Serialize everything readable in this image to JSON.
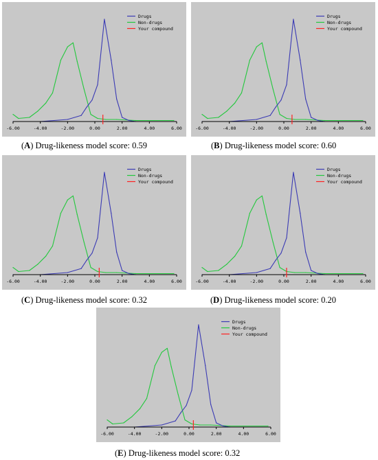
{
  "colors": {
    "background": "#c8c8c8",
    "drugs": "#3a3ab4",
    "non_drugs": "#22c83c",
    "your_compound": "#ff2020",
    "axis": "#000000"
  },
  "chart_data": [
    {
      "type": "line",
      "panel_letter": "A",
      "caption": "Drug-likeness model score: 0.59",
      "legend": [
        "Drugs",
        "Non-drugs",
        "Your compound"
      ],
      "xlim": [
        -6,
        6
      ],
      "ylim": [
        0,
        1
      ],
      "x_ticks": [
        "-6.00",
        "-4.00",
        "-2.00",
        "0.00",
        "2.00",
        "4.00",
        "6.00"
      ],
      "series": [
        {
          "name": "Drugs",
          "color": "#3a3ab4",
          "x": [
            -6.0,
            -4.0,
            -2.0,
            -1.0,
            -0.6,
            -0.2,
            0.2,
            0.7,
            1.2,
            1.6,
            2.0,
            2.5,
            3.0
          ],
          "y": [
            0.0,
            0.0,
            0.02,
            0.06,
            0.14,
            0.21,
            0.36,
            1.0,
            0.6,
            0.22,
            0.04,
            0.01,
            0.0
          ]
        },
        {
          "name": "Non-drugs",
          "color": "#22c83c",
          "x": [
            -6.0,
            -5.6,
            -4.8,
            -4.2,
            -3.6,
            -3.1,
            -2.5,
            -2.0,
            -1.6,
            -1.3,
            -0.8,
            -0.3,
            0.2,
            0.8,
            1.6,
            3.0,
            5.8
          ],
          "y": [
            0.07,
            0.03,
            0.04,
            0.1,
            0.18,
            0.28,
            0.6,
            0.73,
            0.77,
            0.59,
            0.32,
            0.07,
            0.03,
            0.02,
            0.02,
            0.01,
            0.01
          ]
        },
        {
          "name": "Your compound",
          "color": "#ff2020",
          "x": [
            0.59
          ],
          "y": [
            0
          ]
        }
      ]
    },
    {
      "type": "line",
      "panel_letter": "B",
      "caption": "Drug-likeness model score: 0.60",
      "legend": [
        "Drugs",
        "Non-drugs",
        "Your compound"
      ],
      "xlim": [
        -6,
        6
      ],
      "ylim": [
        0,
        1
      ],
      "x_ticks": [
        "-6.00",
        "-4.00",
        "-2.00",
        "0.00",
        "2.00",
        "4.00",
        "6.00"
      ],
      "series": [
        {
          "name": "Drugs",
          "color": "#3a3ab4",
          "x": [
            -6.0,
            -4.0,
            -2.0,
            -1.0,
            -0.6,
            -0.2,
            0.2,
            0.7,
            1.2,
            1.6,
            2.0,
            2.5,
            3.0
          ],
          "y": [
            0.0,
            0.0,
            0.02,
            0.06,
            0.14,
            0.21,
            0.36,
            1.0,
            0.6,
            0.22,
            0.04,
            0.01,
            0.0
          ]
        },
        {
          "name": "Non-drugs",
          "color": "#22c83c",
          "x": [
            -6.0,
            -5.6,
            -4.8,
            -4.2,
            -3.6,
            -3.1,
            -2.5,
            -2.0,
            -1.6,
            -1.3,
            -0.8,
            -0.3,
            0.2,
            0.8,
            1.6,
            3.0,
            5.8
          ],
          "y": [
            0.07,
            0.03,
            0.04,
            0.1,
            0.18,
            0.28,
            0.6,
            0.73,
            0.77,
            0.59,
            0.32,
            0.07,
            0.03,
            0.02,
            0.02,
            0.01,
            0.01
          ]
        },
        {
          "name": "Your compound",
          "color": "#ff2020",
          "x": [
            0.6
          ],
          "y": [
            0
          ]
        }
      ]
    },
    {
      "type": "line",
      "panel_letter": "C",
      "caption": "Drug-likeness model score: 0.32",
      "legend": [
        "Drugs",
        "Non-drugs",
        "Your compound"
      ],
      "xlim": [
        -6,
        6
      ],
      "ylim": [
        0,
        1
      ],
      "x_ticks": [
        "-6.00",
        "-4.00",
        "-2.00",
        "0.00",
        "2.00",
        "4.00",
        "6.00"
      ],
      "series": [
        {
          "name": "Drugs",
          "color": "#3a3ab4",
          "x": [
            -6.0,
            -4.0,
            -2.0,
            -1.0,
            -0.6,
            -0.2,
            0.2,
            0.7,
            1.2,
            1.6,
            2.0,
            2.5,
            3.0
          ],
          "y": [
            0.0,
            0.0,
            0.02,
            0.06,
            0.14,
            0.21,
            0.36,
            1.0,
            0.6,
            0.22,
            0.04,
            0.01,
            0.0
          ]
        },
        {
          "name": "Non-drugs",
          "color": "#22c83c",
          "x": [
            -6.0,
            -5.6,
            -4.8,
            -4.2,
            -3.6,
            -3.1,
            -2.5,
            -2.0,
            -1.6,
            -1.3,
            -0.8,
            -0.3,
            0.2,
            0.8,
            1.6,
            3.0,
            5.8
          ],
          "y": [
            0.07,
            0.03,
            0.04,
            0.1,
            0.18,
            0.28,
            0.6,
            0.73,
            0.77,
            0.59,
            0.32,
            0.07,
            0.03,
            0.02,
            0.02,
            0.01,
            0.01
          ]
        },
        {
          "name": "Your compound",
          "color": "#ff2020",
          "x": [
            0.32
          ],
          "y": [
            0
          ]
        }
      ]
    },
    {
      "type": "line",
      "panel_letter": "D",
      "caption": "Drug-likeness model score: 0.20",
      "legend": [
        "Drugs",
        "Non-drugs",
        "Your compound"
      ],
      "xlim": [
        -6,
        6
      ],
      "ylim": [
        0,
        1
      ],
      "x_ticks": [
        "-6.00",
        "-4.00",
        "-2.00",
        "0.00",
        "2.00",
        "4.00",
        "6.00"
      ],
      "series": [
        {
          "name": "Drugs",
          "color": "#3a3ab4",
          "x": [
            -6.0,
            -4.0,
            -2.0,
            -1.0,
            -0.6,
            -0.2,
            0.2,
            0.7,
            1.2,
            1.6,
            2.0,
            2.5,
            3.0
          ],
          "y": [
            0.0,
            0.0,
            0.02,
            0.06,
            0.14,
            0.21,
            0.36,
            1.0,
            0.6,
            0.22,
            0.04,
            0.01,
            0.0
          ]
        },
        {
          "name": "Non-drugs",
          "color": "#22c83c",
          "x": [
            -6.0,
            -5.6,
            -4.8,
            -4.2,
            -3.6,
            -3.1,
            -2.5,
            -2.0,
            -1.6,
            -1.3,
            -0.8,
            -0.3,
            0.2,
            0.8,
            1.6,
            3.0,
            5.8
          ],
          "y": [
            0.07,
            0.03,
            0.04,
            0.1,
            0.18,
            0.28,
            0.6,
            0.73,
            0.77,
            0.59,
            0.32,
            0.07,
            0.03,
            0.02,
            0.02,
            0.01,
            0.01
          ]
        },
        {
          "name": "Your compound",
          "color": "#ff2020",
          "x": [
            0.2
          ],
          "y": [
            0
          ]
        }
      ]
    },
    {
      "type": "line",
      "panel_letter": "E",
      "caption": "Drug-likeness model score: 0.32",
      "legend": [
        "Drugs",
        "Non-drugs",
        "Your compound"
      ],
      "xlim": [
        -6,
        6
      ],
      "ylim": [
        0,
        1
      ],
      "x_ticks": [
        "-6.00",
        "-4.00",
        "-2.00",
        "0.00",
        "2.00",
        "4.00",
        "6.00"
      ],
      "series": [
        {
          "name": "Drugs",
          "color": "#3a3ab4",
          "x": [
            -6.0,
            -4.0,
            -2.0,
            -1.0,
            -0.6,
            -0.2,
            0.2,
            0.7,
            1.2,
            1.6,
            2.0,
            2.5,
            3.0
          ],
          "y": [
            0.0,
            0.0,
            0.02,
            0.06,
            0.14,
            0.21,
            0.36,
            1.0,
            0.6,
            0.22,
            0.04,
            0.01,
            0.0
          ]
        },
        {
          "name": "Non-drugs",
          "color": "#22c83c",
          "x": [
            -6.0,
            -5.6,
            -4.8,
            -4.2,
            -3.6,
            -3.1,
            -2.5,
            -2.0,
            -1.6,
            -1.3,
            -0.8,
            -0.3,
            0.2,
            0.8,
            1.6,
            3.0,
            5.8
          ],
          "y": [
            0.07,
            0.03,
            0.04,
            0.1,
            0.18,
            0.28,
            0.6,
            0.73,
            0.77,
            0.59,
            0.32,
            0.07,
            0.03,
            0.02,
            0.02,
            0.01,
            0.01
          ]
        },
        {
          "name": "Your compound",
          "color": "#ff2020",
          "x": [
            0.32
          ],
          "y": [
            0
          ]
        }
      ]
    }
  ]
}
